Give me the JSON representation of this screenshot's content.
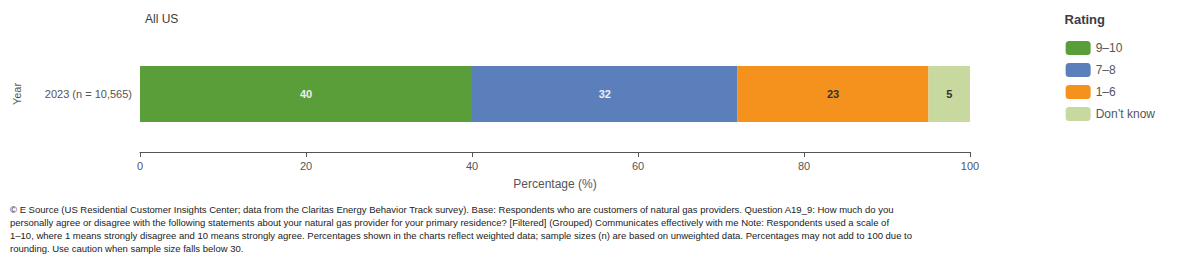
{
  "chart_data": {
    "type": "bar",
    "orientation": "horizontal",
    "stacked": true,
    "title": "All US",
    "xlabel": "Percentage (%)",
    "ylabel": "Year",
    "categories": [
      "2023 (n = 10,565)"
    ],
    "series": [
      {
        "name": "9–10",
        "color": "#5a9e3a",
        "values": [
          40
        ]
      },
      {
        "name": "7–8",
        "color": "#5b7fba",
        "values": [
          32
        ]
      },
      {
        "name": "1–6",
        "color": "#f5921e",
        "values": [
          23
        ]
      },
      {
        "name": "Don’t know",
        "color": "#c8d9a0",
        "values": [
          5
        ]
      }
    ],
    "xlim": [
      0,
      100
    ],
    "xticks": [
      0,
      20,
      40,
      60,
      80,
      100
    ],
    "data_labels": true,
    "grid": false,
    "legend": "upper right",
    "legend_title": "Rating",
    "footnote": [
      "© E Source (US Residential Customer Insights Center; data from the Claritas Energy Behavior Track survey). Base: Respondents who are customers of natural gas providers. Question A19_9: How much do you",
      "personally agree or disagree with the following statements about your natural gas provider for your primary residence? [Filtered] (Grouped) Communicates effectively with me Note: Respondents used a scale of",
      "1–10, where 1 means strongly disagree and 10 means strongly agree. Percentages shown in the charts reflect weighted data; sample sizes (n) are based on unweighted data. Percentages may not add to 100 due to",
      "rounding. Use caution when sample size falls below 30."
    ]
  }
}
